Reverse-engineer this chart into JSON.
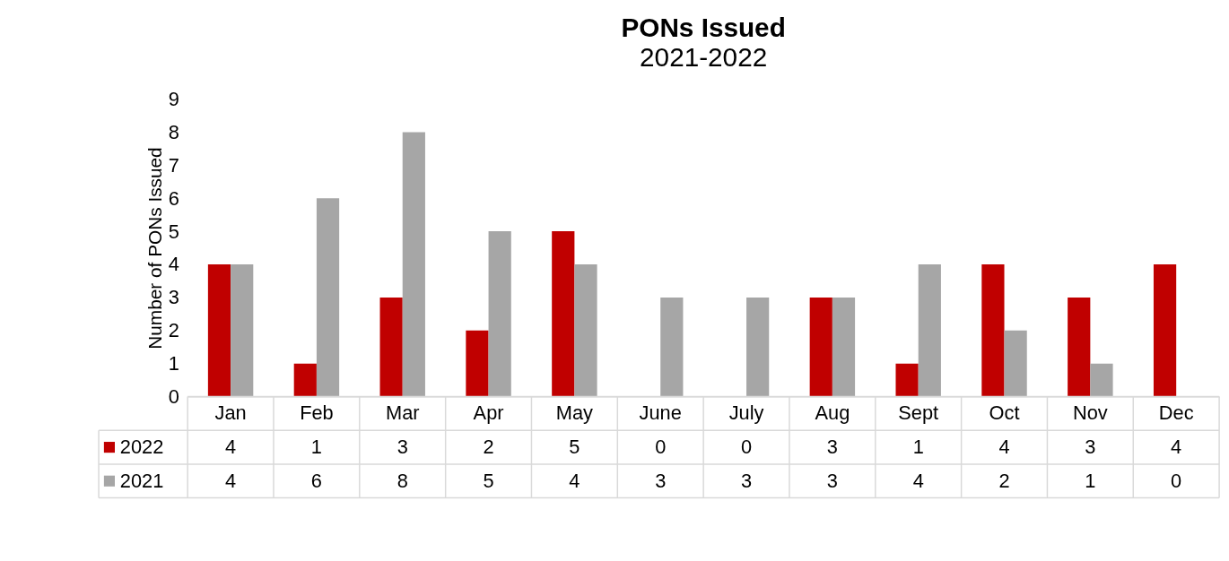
{
  "chart_data": {
    "type": "bar",
    "title": "PONs Issued",
    "subtitle": "2021-2022",
    "ylabel": "Number of PONs Issued",
    "categories": [
      "Jan",
      "Feb",
      "Mar",
      "Apr",
      "May",
      "June",
      "July",
      "Aug",
      "Sept",
      "Oct",
      "Nov",
      "Dec"
    ],
    "series": [
      {
        "name": "2022",
        "color": "#c00000",
        "values": [
          4,
          1,
          3,
          2,
          5,
          0,
          0,
          3,
          1,
          4,
          3,
          4
        ]
      },
      {
        "name": "2021",
        "color": "#a6a6a6",
        "values": [
          4,
          6,
          8,
          5,
          4,
          3,
          3,
          3,
          4,
          2,
          1,
          0
        ]
      }
    ],
    "ylim": [
      0,
      9
    ],
    "yticks": [
      0,
      1,
      2,
      3,
      4,
      5,
      6,
      7,
      8,
      9
    ],
    "data_labels": true,
    "legend": "bottom"
  }
}
